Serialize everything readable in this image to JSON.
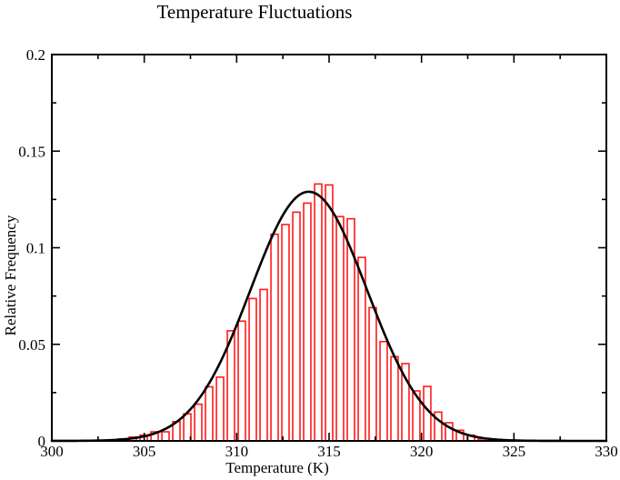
{
  "chart_data": {
    "type": "bar",
    "subtype": "histogram-with-fit-curve",
    "title": "Temperature Fluctuations",
    "xlabel": "Temperature (K)",
    "ylabel": "Relative Frequency",
    "xlim": [
      300,
      330
    ],
    "ylim": [
      0,
      0.2
    ],
    "grid": false,
    "legend_position": "none",
    "x_major_ticks": [
      300,
      305,
      310,
      315,
      320,
      325,
      330
    ],
    "x_major_tick_labels": [
      "300",
      "305",
      "310",
      "315",
      "320",
      "325",
      "330"
    ],
    "x_minor_ticks": [
      302.5,
      307.5,
      312.5,
      317.5,
      322.5,
      327.5
    ],
    "y_major_ticks": [
      0,
      0.05,
      0.1,
      0.15,
      0.2
    ],
    "y_major_tick_labels": [
      "0",
      "0.05",
      "0.1",
      "0.15",
      "0.2"
    ],
    "y_minor_ticks": [
      0.025,
      0.075,
      0.125,
      0.175
    ],
    "bar_edge_color": "#ff1a1a",
    "bar_fill_color": "#ffffff",
    "curve_color": "#000000",
    "frame_color": "#000000",
    "bin_width": 0.59,
    "bar_draw_width": 0.39,
    "bars": [
      {
        "x": 303.79,
        "y": 0.001
      },
      {
        "x": 304.38,
        "y": 0.002
      },
      {
        "x": 304.97,
        "y": 0.003
      },
      {
        "x": 305.56,
        "y": 0.0047
      },
      {
        "x": 306.15,
        "y": 0.0047
      },
      {
        "x": 306.74,
        "y": 0.01
      },
      {
        "x": 307.33,
        "y": 0.014
      },
      {
        "x": 307.92,
        "y": 0.019
      },
      {
        "x": 308.51,
        "y": 0.028
      },
      {
        "x": 309.1,
        "y": 0.033
      },
      {
        "x": 309.69,
        "y": 0.057
      },
      {
        "x": 310.28,
        "y": 0.062
      },
      {
        "x": 310.87,
        "y": 0.0737
      },
      {
        "x": 311.46,
        "y": 0.0784
      },
      {
        "x": 312.05,
        "y": 0.107
      },
      {
        "x": 312.64,
        "y": 0.112
      },
      {
        "x": 313.23,
        "y": 0.1184
      },
      {
        "x": 313.82,
        "y": 0.1231
      },
      {
        "x": 314.41,
        "y": 0.133
      },
      {
        "x": 315.0,
        "y": 0.1325
      },
      {
        "x": 315.59,
        "y": 0.1161
      },
      {
        "x": 316.18,
        "y": 0.115
      },
      {
        "x": 316.77,
        "y": 0.095
      },
      {
        "x": 317.36,
        "y": 0.069
      },
      {
        "x": 317.95,
        "y": 0.0514
      },
      {
        "x": 318.54,
        "y": 0.0436
      },
      {
        "x": 319.13,
        "y": 0.04
      },
      {
        "x": 319.72,
        "y": 0.0259
      },
      {
        "x": 320.31,
        "y": 0.0282
      },
      {
        "x": 320.9,
        "y": 0.0149
      },
      {
        "x": 321.49,
        "y": 0.0094
      },
      {
        "x": 322.08,
        "y": 0.0055
      },
      {
        "x": 322.67,
        "y": 0.003
      },
      {
        "x": 323.26,
        "y": 0.001
      }
    ],
    "curve": {
      "model": "gaussian",
      "amplitude": 0.129,
      "mean": 313.9,
      "sigma": 3.15,
      "x_range": [
        300,
        330
      ]
    }
  }
}
